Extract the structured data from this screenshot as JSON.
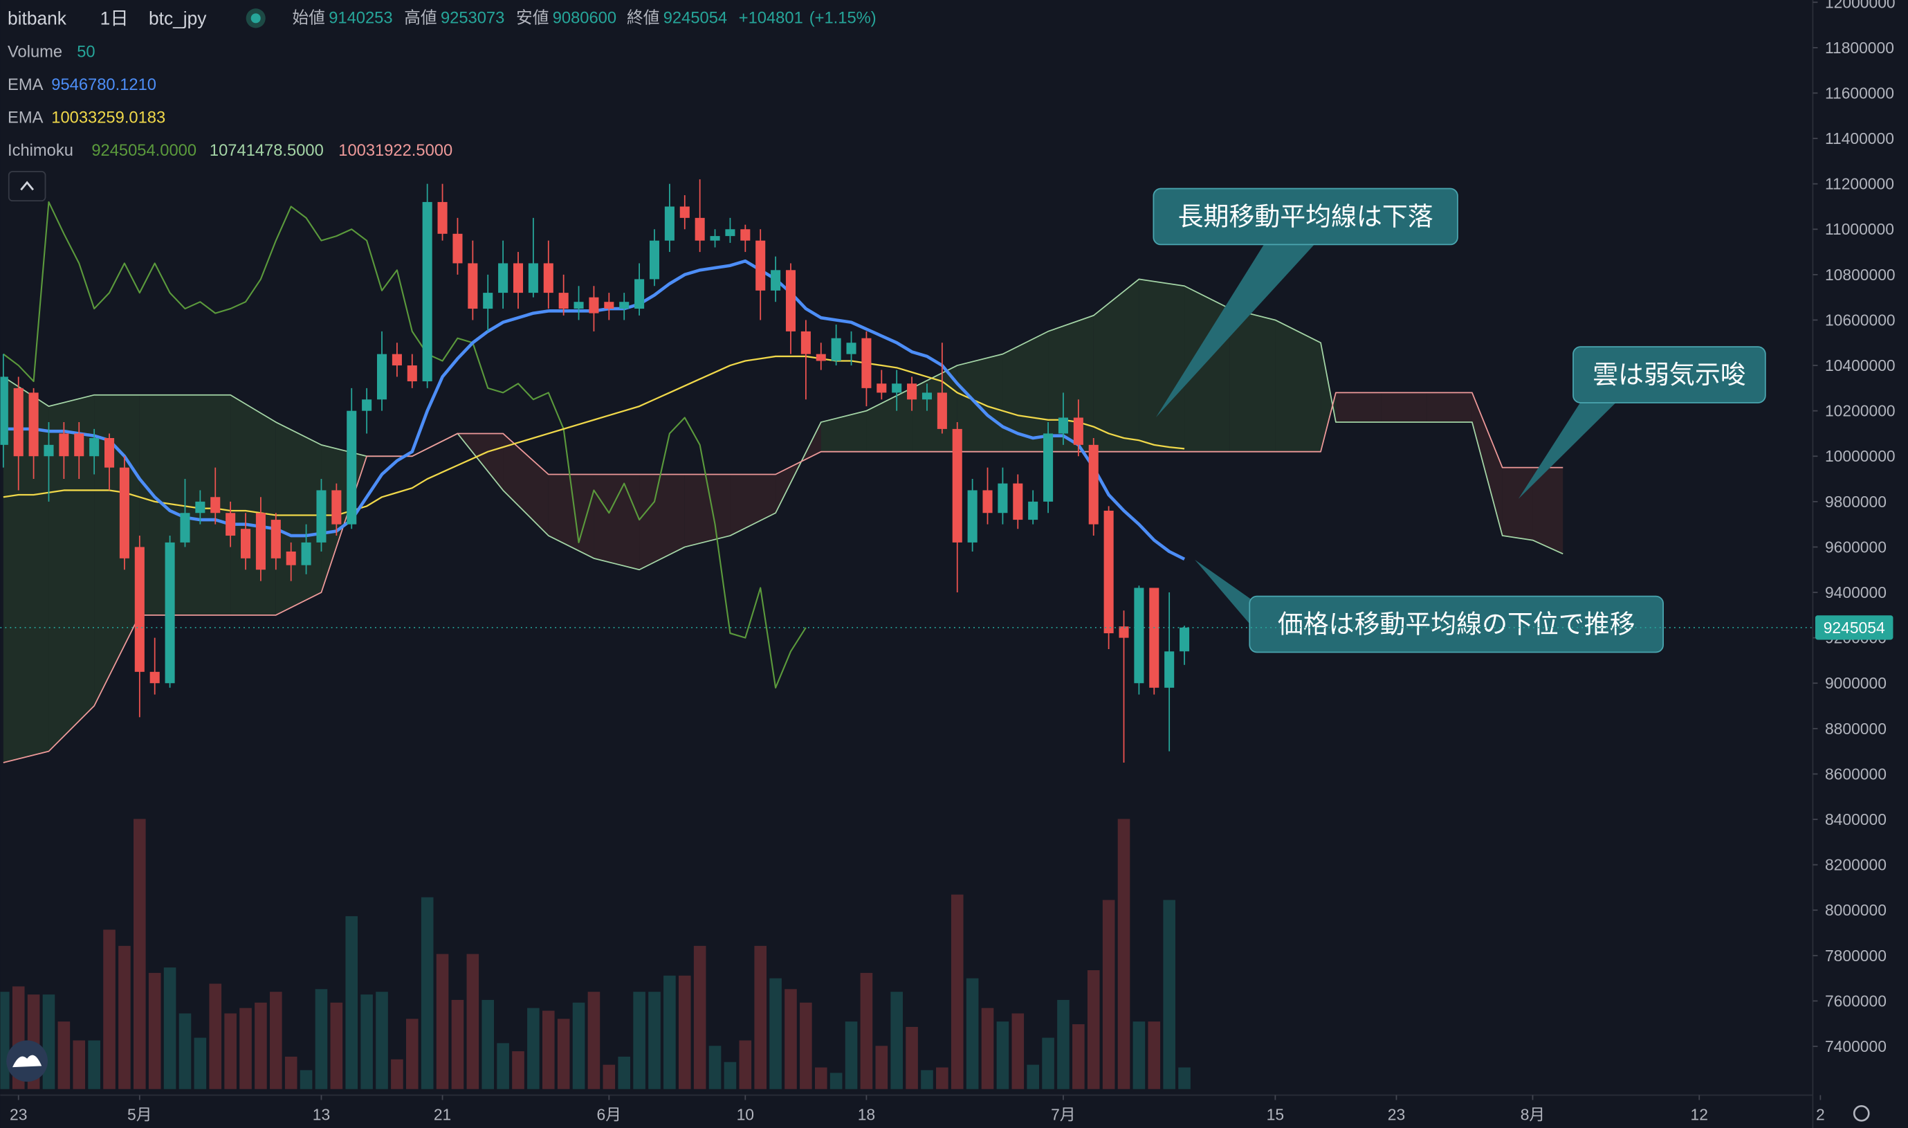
{
  "chart_data": {
    "type": "candlestick",
    "header": {
      "exchange": "bitbank",
      "interval": "1日",
      "pair": "btc_jpy",
      "open_label": "始値",
      "high_label": "高値",
      "low_label": "安値",
      "close_label": "終値",
      "change": "+104801",
      "change_pct": "(+1.15%)"
    },
    "volume_label": "Volume",
    "volume_length": 50,
    "up_color": "#26a69a",
    "down_color": "#ef5350",
    "x": [
      -1,
      0,
      1,
      2,
      3,
      4,
      5,
      6,
      7,
      8,
      9,
      10,
      11,
      12,
      13,
      14,
      15,
      16,
      17,
      18,
      19,
      20,
      21,
      22,
      23,
      24,
      25,
      26,
      27,
      28,
      29,
      30,
      31,
      32,
      33,
      34,
      35,
      36,
      37,
      38,
      39,
      40,
      41,
      42,
      43,
      44,
      45,
      46,
      47,
      48,
      49,
      50,
      51,
      52,
      53,
      54,
      55,
      56,
      57,
      58,
      59,
      60,
      61,
      62,
      63,
      64,
      65,
      66,
      67,
      68,
      69,
      70,
      71,
      72,
      73,
      74,
      75,
      76,
      77
    ],
    "open": [
      10050000,
      10300000,
      10280000,
      10000000,
      10100000,
      10100000,
      10000000,
      10080000,
      9950000,
      9600000,
      9050000,
      9000000,
      9620000,
      9750000,
      9820000,
      9750000,
      9680000,
      9750000,
      9720000,
      9580000,
      9520000,
      9620000,
      9850000,
      9700000,
      10200000,
      10250000,
      10450000,
      10400000,
      10330000,
      11120000,
      10980000,
      10850000,
      10650000,
      10720000,
      10850000,
      10720000,
      10850000,
      10720000,
      10650000,
      10700000,
      10680000,
      10650000,
      10650000,
      10780000,
      10950000,
      11100000,
      11050000,
      10950000,
      10970000,
      11000000,
      10950000,
      10730000,
      10820000,
      10550000,
      10450000,
      10420000,
      10450000,
      10520000,
      10320000,
      10280000,
      10320000,
      10250000,
      10280000,
      10120000,
      9620000,
      9850000,
      9750000,
      9880000,
      9720000,
      9800000,
      10100000,
      10170000,
      10050000,
      9760000,
      9250000,
      9000000,
      9420000,
      8980000,
      9140253
    ],
    "high": [
      10450000,
      10350000,
      10300000,
      10150000,
      10150000,
      10150000,
      10120000,
      10100000,
      10000000,
      9650000,
      9200000,
      9650000,
      9900000,
      9850000,
      9950000,
      9800000,
      9750000,
      9820000,
      9750000,
      9620000,
      9700000,
      9900000,
      9880000,
      10300000,
      10300000,
      10550000,
      10500000,
      10450000,
      11200000,
      11200000,
      11050000,
      10950000,
      10800000,
      10950000,
      10900000,
      11050000,
      10950000,
      10800000,
      10750000,
      10750000,
      10720000,
      10720000,
      10850000,
      11000000,
      11200000,
      11150000,
      11220000,
      11000000,
      11050000,
      11020000,
      11000000,
      10880000,
      10850000,
      10600000,
      10500000,
      10580000,
      10550000,
      10550000,
      10380000,
      10380000,
      10350000,
      10320000,
      10500000,
      10150000,
      9900000,
      9950000,
      9950000,
      9920000,
      9850000,
      10150000,
      10280000,
      10250000,
      10080000,
      9780000,
      9320000,
      9430000,
      9420000,
      9400000,
      9253073
    ],
    "low": [
      9950000,
      9850000,
      9900000,
      9800000,
      9900000,
      9900000,
      9920000,
      9850000,
      9500000,
      8850000,
      8950000,
      8980000,
      9600000,
      9700000,
      9700000,
      9600000,
      9500000,
      9450000,
      9500000,
      9450000,
      9480000,
      9580000,
      9650000,
      9680000,
      10100000,
      10200000,
      10350000,
      10300000,
      10300000,
      10950000,
      10800000,
      10600000,
      10550000,
      10650000,
      10650000,
      10700000,
      10650000,
      10620000,
      10600000,
      10550000,
      10600000,
      10600000,
      10620000,
      10750000,
      10900000,
      11000000,
      10900000,
      10920000,
      10940000,
      10900000,
      10600000,
      10680000,
      10450000,
      10250000,
      10380000,
      10400000,
      10400000,
      10220000,
      10250000,
      10200000,
      10200000,
      10200000,
      10100000,
      9400000,
      9580000,
      9700000,
      9700000,
      9680000,
      9700000,
      9750000,
      10050000,
      10000000,
      9650000,
      9150000,
      8650000,
      8950000,
      8950000,
      8700000,
      9080600
    ],
    "close": [
      10350000,
      10000000,
      10000000,
      10050000,
      10000000,
      10000000,
      10080000,
      9950000,
      9550000,
      9050000,
      9000000,
      9620000,
      9750000,
      9800000,
      9750000,
      9650000,
      9550000,
      9500000,
      9550000,
      9520000,
      9620000,
      9850000,
      9700000,
      10200000,
      10250000,
      10450000,
      10400000,
      10330000,
      11120000,
      10980000,
      10850000,
      10650000,
      10720000,
      10850000,
      10720000,
      10850000,
      10720000,
      10650000,
      10680000,
      10630000,
      10650000,
      10680000,
      10780000,
      10950000,
      11100000,
      11050000,
      10950000,
      10970000,
      11000000,
      10950000,
      10730000,
      10820000,
      10550000,
      10450000,
      10420000,
      10520000,
      10500000,
      10300000,
      10280000,
      10320000,
      10250000,
      10280000,
      10120000,
      9620000,
      9850000,
      9750000,
      9880000,
      9720000,
      9800000,
      10100000,
      10170000,
      10050000,
      9700000,
      9220000,
      9200000,
      9420000,
      8980000,
      9140000,
      9245054
    ],
    "volume": [
      36,
      38,
      35,
      35,
      25,
      18,
      18,
      59,
      53,
      100,
      43,
      45,
      28,
      19,
      39,
      28,
      30,
      32,
      36,
      12,
      7,
      37,
      32,
      64,
      35,
      36,
      11,
      26,
      71,
      50,
      33,
      50,
      33,
      17,
      14,
      30,
      29,
      26,
      32,
      36,
      9,
      12,
      36,
      36,
      42,
      42,
      53,
      16,
      10,
      18,
      53,
      41,
      37,
      32,
      8,
      6,
      25,
      43,
      16,
      36,
      23,
      7,
      8,
      72,
      41,
      30,
      25,
      28,
      9,
      19,
      33,
      24,
      44,
      70,
      100,
      25,
      25,
      70,
      8
    ],
    "series": [
      {
        "name": "EMA",
        "color": "#4d8ef7",
        "value_label": "9546780.1210",
        "values": [
          10120000,
          10120000,
          10120000,
          10110000,
          10110000,
          10100000,
          10090000,
          10070000,
          10000000,
          9900000,
          9820000,
          9760000,
          9730000,
          9720000,
          9720000,
          9700000,
          9700000,
          9690000,
          9680000,
          9650000,
          9650000,
          9660000,
          9670000,
          9720000,
          9820000,
          9920000,
          9980000,
          10020000,
          10200000,
          10350000,
          10430000,
          10500000,
          10550000,
          10590000,
          10610000,
          10630000,
          10640000,
          10640000,
          10640000,
          10640000,
          10650000,
          10650000,
          10670000,
          10710000,
          10760000,
          10800000,
          10820000,
          10830000,
          10840000,
          10860000,
          10820000,
          10780000,
          10720000,
          10650000,
          10610000,
          10600000,
          10590000,
          10560000,
          10530000,
          10500000,
          10460000,
          10440000,
          10400000,
          10320000,
          10250000,
          10180000,
          10130000,
          10100000,
          10080000,
          10090000,
          10090000,
          10050000,
          9950000,
          9830000,
          9760000,
          9700000,
          9630000,
          9580000,
          9546780.121
        ]
      },
      {
        "name": "EMA",
        "color": "#f0d84a",
        "value_label": "10033259.0183",
        "values": [
          9820000,
          9830000,
          9830000,
          9840000,
          9850000,
          9850000,
          9850000,
          9850000,
          9840000,
          9820000,
          9800000,
          9790000,
          9780000,
          9770000,
          9770000,
          9760000,
          9760000,
          9750000,
          9740000,
          9740000,
          9740000,
          9740000,
          9740000,
          9760000,
          9780000,
          9820000,
          9840000,
          9860000,
          9900000,
          9930000,
          9960000,
          9990000,
          10020000,
          10040000,
          10060000,
          10080000,
          10100000,
          10120000,
          10140000,
          10160000,
          10180000,
          10200000,
          10220000,
          10250000,
          10280000,
          10310000,
          10340000,
          10370000,
          10400000,
          10420000,
          10430000,
          10440000,
          10440000,
          10440000,
          10430000,
          10420000,
          10420000,
          10410000,
          10400000,
          10390000,
          10370000,
          10350000,
          10330000,
          10280000,
          10250000,
          10220000,
          10200000,
          10180000,
          10170000,
          10160000,
          10160000,
          10150000,
          10130000,
          10100000,
          10080000,
          10070000,
          10050000,
          10040000,
          10033259.0183
        ]
      }
    ],
    "ichimoku": {
      "name": "Ichimoku",
      "value_labels": [
        "9245054.0000",
        "10741478.5000",
        "10031922.5000"
      ],
      "chikou": {
        "color": "#5b9a3c",
        "x": [
          -1,
          0,
          1,
          2,
          3,
          4,
          5,
          6,
          7,
          8,
          9,
          10,
          11,
          12,
          13,
          14,
          15,
          16,
          17,
          18,
          19,
          20,
          21,
          22,
          23,
          24,
          25,
          26,
          27,
          28,
          29,
          30,
          31,
          32,
          33,
          34,
          35,
          36,
          37,
          38,
          39,
          40,
          41,
          42,
          43,
          44,
          45,
          46,
          47,
          48,
          49,
          50,
          51,
          52
        ],
        "values": [
          10450000,
          10400000,
          10330000,
          11120000,
          10980000,
          10850000,
          10650000,
          10720000,
          10850000,
          10720000,
          10850000,
          10720000,
          10650000,
          10680000,
          10630000,
          10650000,
          10680000,
          10780000,
          10950000,
          11100000,
          11050000,
          10950000,
          10970000,
          11000000,
          10950000,
          10730000,
          10820000,
          10550000,
          10450000,
          10420000,
          10520000,
          10500000,
          10300000,
          10280000,
          10320000,
          10250000,
          10280000,
          10120000,
          9620000,
          9850000,
          9750000,
          9880000,
          9720000,
          9800000,
          10100000,
          10170000,
          10050000,
          9700000,
          9220000,
          9200000,
          9420000,
          8980000,
          9140000,
          9245054
        ]
      },
      "cloud": {
        "span_a_color": "#a5d6a7",
        "span_b_color": "#ef9a9a",
        "up_fill": "#1f2e27",
        "down_fill": "#2c1f26",
        "x": [
          -1,
          2,
          5,
          8,
          11,
          14,
          17,
          20,
          23,
          26,
          29,
          32,
          35,
          38,
          41,
          44,
          47,
          50,
          53,
          56,
          59,
          62,
          65,
          68,
          71,
          74,
          77,
          80,
          83,
          86,
          87,
          90,
          93,
          96,
          98,
          100,
          102
        ],
        "span_a": [
          10350000,
          10220000,
          10270000,
          10270000,
          10270000,
          10270000,
          10150000,
          10050000,
          10000000,
          10000000,
          10100000,
          9850000,
          9650000,
          9550000,
          9500000,
          9600000,
          9650000,
          9750000,
          10150000,
          10200000,
          10300000,
          10400000,
          10450000,
          10550000,
          10620000,
          10780000,
          10750000,
          10650000,
          10600000,
          10500000,
          10150000,
          10150000,
          10150000,
          10150000,
          9650000,
          9630000,
          9570000
        ],
        "span_b": [
          8650000,
          8700000,
          8900000,
          9300000,
          9300000,
          9300000,
          9300000,
          9400000,
          10000000,
          10000000,
          10100000,
          10100000,
          9920000,
          9920000,
          9920000,
          9920000,
          9920000,
          9920000,
          10020000,
          10020000,
          10020000,
          10020000,
          10020000,
          10020000,
          10020000,
          10020000,
          10020000,
          10020000,
          10020000,
          10020000,
          10280000,
          10280000,
          10280000,
          10280000,
          9950000,
          9950000,
          9950000
        ]
      }
    },
    "xlim": [
      -1.2,
      118.5
    ],
    "xticks": [
      {
        "value": 0,
        "label": "23"
      },
      {
        "value": 8,
        "label": "5月"
      },
      {
        "value": 20,
        "label": "13"
      },
      {
        "value": 28,
        "label": "21"
      },
      {
        "value": 39,
        "label": "6月"
      },
      {
        "value": 48,
        "label": "10"
      },
      {
        "value": 56,
        "label": "18"
      },
      {
        "value": 69,
        "label": "7月"
      },
      {
        "value": 83,
        "label": "15"
      },
      {
        "value": 91,
        "label": "23"
      },
      {
        "value": 100,
        "label": "8月"
      },
      {
        "value": 111,
        "label": "12"
      },
      {
        "value": 119,
        "label": "2"
      }
    ],
    "ylim": [
      7185000,
      12010000
    ],
    "yticks": [
      12000000,
      11800000,
      11600000,
      11400000,
      11200000,
      11000000,
      10800000,
      10600000,
      10400000,
      10200000,
      10000000,
      9800000,
      9600000,
      9400000,
      9200000,
      9000000,
      8800000,
      8600000,
      8400000,
      8200000,
      8000000,
      7800000,
      7600000,
      7400000
    ],
    "annotations": [
      {
        "text": "長期移動平均線は下落"
      },
      {
        "text": "雲は弱気示唆"
      },
      {
        "text": "価格は移動平均線の下位で推移"
      }
    ]
  }
}
